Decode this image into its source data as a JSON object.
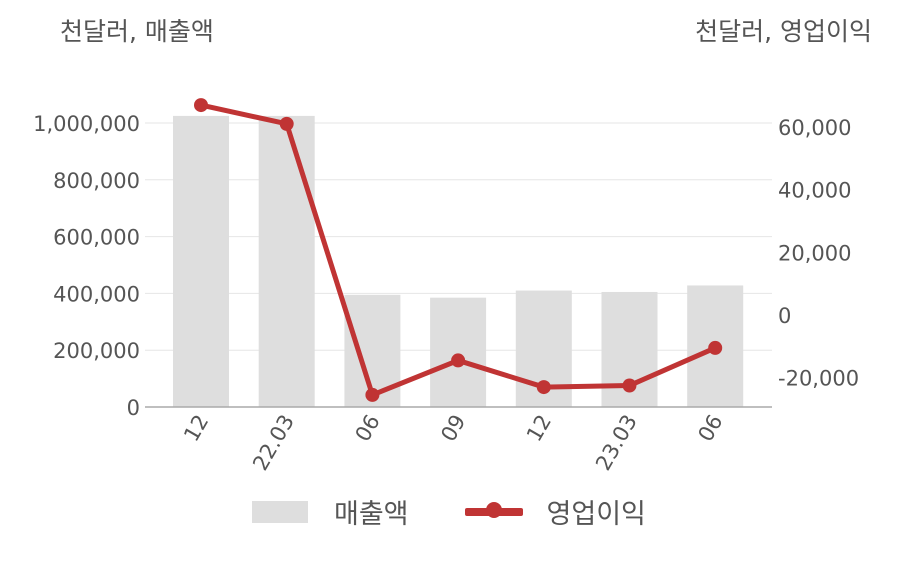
{
  "left_unit": "천달러, 매출액",
  "right_unit": "천달러, 영업이익",
  "legend": {
    "bar_label": "매출액",
    "line_label": "영업이익"
  },
  "colors": {
    "bar": "#dedede",
    "line": "#c03434",
    "grid": "#e6e6e6",
    "axis": "#aaaaaa",
    "text": "#555555"
  },
  "chart_data": {
    "type": "bar",
    "categories": [
      "12",
      "22.03",
      "06",
      "09",
      "12",
      "23.03",
      "06"
    ],
    "series": [
      {
        "name": "매출액",
        "type": "bar",
        "axis": "left",
        "values": [
          1025000,
          1025000,
          395000,
          385000,
          410000,
          405000,
          428000
        ]
      },
      {
        "name": "영업이익",
        "type": "line",
        "axis": "right",
        "values": [
          67000,
          61000,
          -25500,
          -14500,
          -23000,
          -22500,
          -10500
        ]
      }
    ],
    "left_axis": {
      "ylim": [
        0,
        1000000
      ],
      "ticks": [
        "0",
        "200,000",
        "400,000",
        "600,000",
        "800,000",
        "1,000,000"
      ],
      "tick_values": [
        0,
        200000,
        400000,
        600000,
        800000,
        1000000
      ]
    },
    "right_axis": {
      "ticks": [
        "-20,000",
        "0",
        "20,000",
        "40,000",
        "60,000"
      ],
      "tick_values": [
        -20000,
        0,
        20000,
        40000,
        60000
      ]
    },
    "grid": true,
    "legend_position": "bottom"
  }
}
